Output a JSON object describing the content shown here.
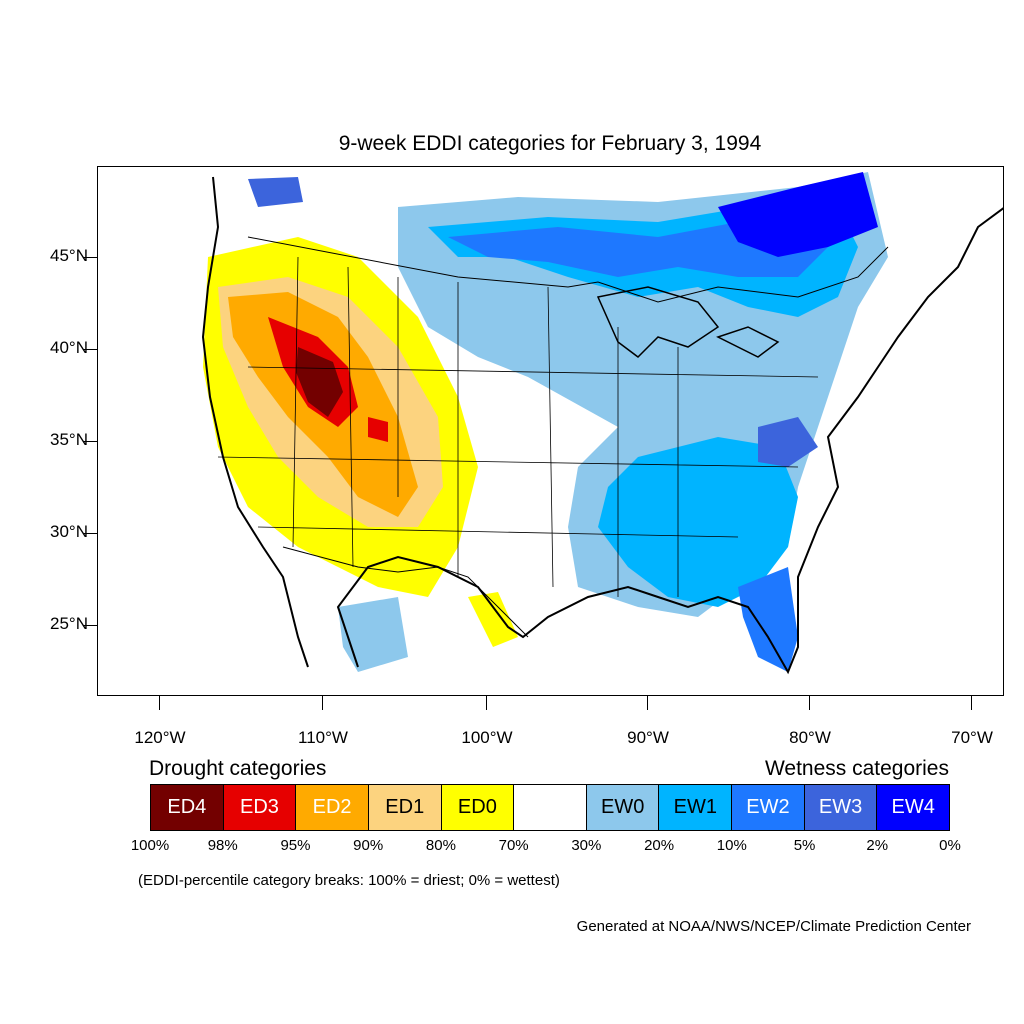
{
  "title": "9-week EDDI categories for February 3, 1994",
  "lat_labels": [
    "45°N",
    "40°N",
    "35°N",
    "30°N",
    "25°N"
  ],
  "lon_labels": [
    "120°W",
    "110°W",
    "100°W",
    "90°W",
    "80°W",
    "70°W"
  ],
  "legend": {
    "drought_heading": "Drought categories",
    "wetness_heading": "Wetness categories",
    "categories": [
      {
        "label": "ED4",
        "color": "#730000",
        "text_color": "#ffffff"
      },
      {
        "label": "ED3",
        "color": "#e60000",
        "text_color": "#ffffff"
      },
      {
        "label": "ED2",
        "color": "#ffaa00",
        "text_color": "#ffffff"
      },
      {
        "label": "ED1",
        "color": "#fcd37f",
        "text_color": "#000000"
      },
      {
        "label": "ED0",
        "color": "#ffff00",
        "text_color": "#000000"
      },
      {
        "label": "",
        "color": "#ffffff",
        "text_color": "#000000"
      },
      {
        "label": "EW0",
        "color": "#8dc8ec",
        "text_color": "#000000"
      },
      {
        "label": "EW1",
        "color": "#00b4ff",
        "text_color": "#000000"
      },
      {
        "label": "EW2",
        "color": "#1e78ff",
        "text_color": "#ffffff"
      },
      {
        "label": "EW3",
        "color": "#3c64dc",
        "text_color": "#ffffff"
      },
      {
        "label": "EW4",
        "color": "#0000ff",
        "text_color": "#ffffff"
      }
    ],
    "breaks": [
      "100%",
      "98%",
      "95%",
      "90%",
      "80%",
      "70%",
      "30%",
      "20%",
      "10%",
      "5%",
      "2%",
      "0%"
    ]
  },
  "note": "(EDDI-percentile category breaks: 100% = driest; 0% = wettest)",
  "credit": "Generated at NOAA/NWS/NCEP/Climate Prediction Center"
}
